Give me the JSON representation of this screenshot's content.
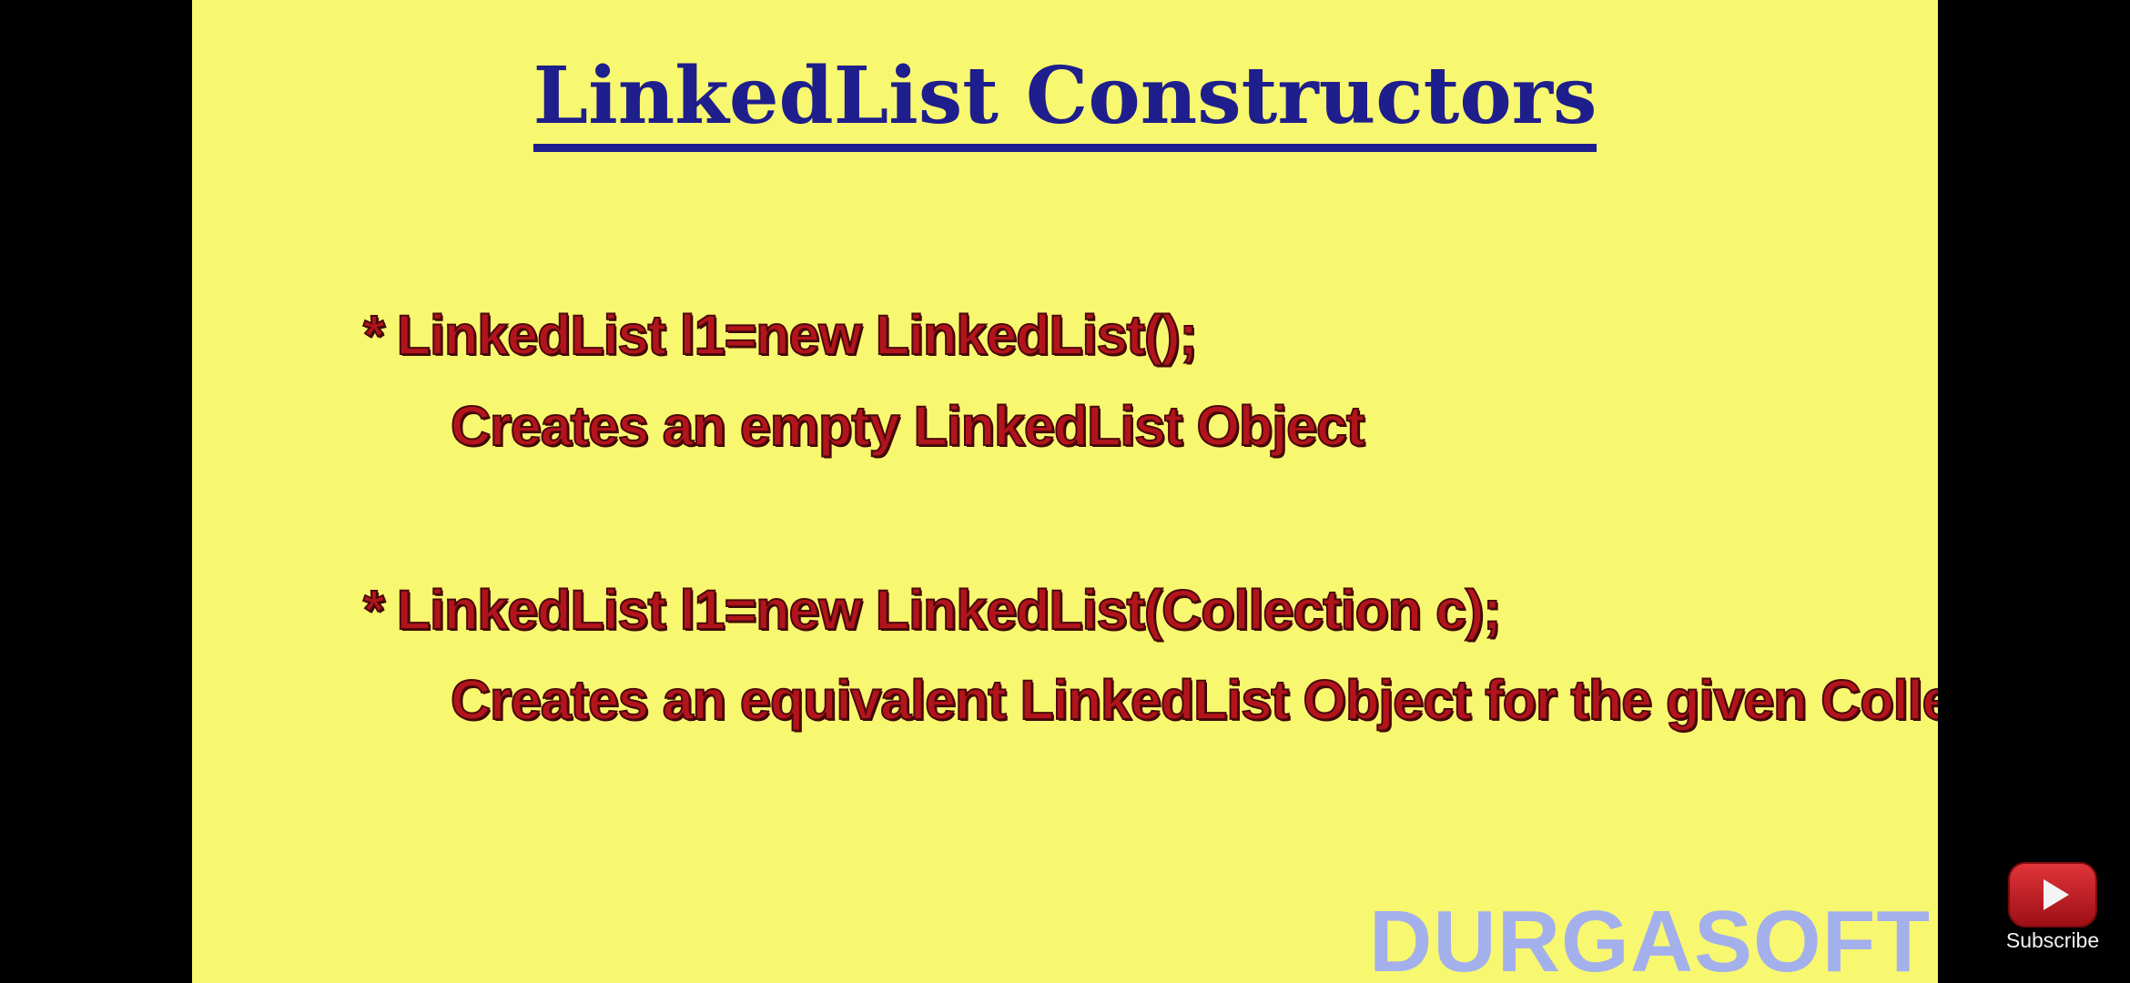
{
  "slide": {
    "title": "LinkedList Constructors",
    "items": [
      {
        "bullet": "*",
        "code": "LinkedList l1=new LinkedList();",
        "description": "Creates an empty LinkedList Object"
      },
      {
        "bullet": "*",
        "code": "LinkedList l1=new LinkedList(Collection c);",
        "description": "Creates an equivalent LinkedList Object for the given Collection"
      }
    ],
    "watermark": "DURGASOFT"
  },
  "overlay": {
    "subscribe_label": "Subscribe",
    "subscribe_icon": "youtube-play-icon"
  },
  "colors": {
    "slide_background": "#f8f870",
    "title": "#1e1e8c",
    "body_text": "#b3141c",
    "watermark": "#a4b0ec",
    "letterbox": "#000000",
    "subscribe_icon": "#c4161c"
  }
}
